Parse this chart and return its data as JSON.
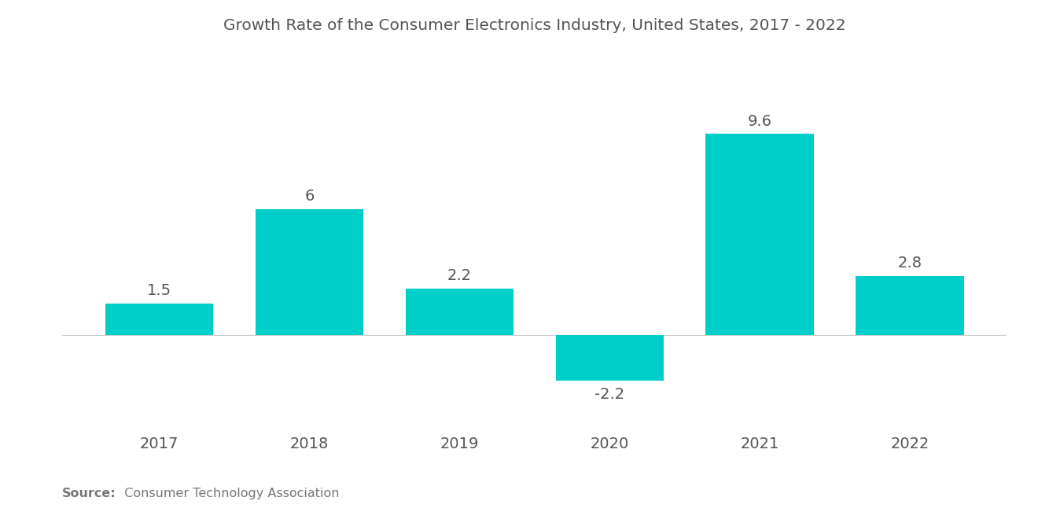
{
  "title": "Growth Rate of the Consumer Electronics Industry, United States, 2017 - 2022",
  "categories": [
    "2017",
    "2018",
    "2019",
    "2020",
    "2021",
    "2022"
  ],
  "values": [
    1.5,
    6.0,
    2.2,
    -2.2,
    9.6,
    2.8
  ],
  "bar_color": "#00CEC9",
  "background_color": "#ffffff",
  "title_fontsize": 14.5,
  "label_fontsize": 14,
  "tick_fontsize": 14,
  "source_bold": "Source:",
  "source_normal": "  Consumer Technology Association",
  "ylim": [
    -4.5,
    13.0
  ],
  "bar_width": 0.72
}
